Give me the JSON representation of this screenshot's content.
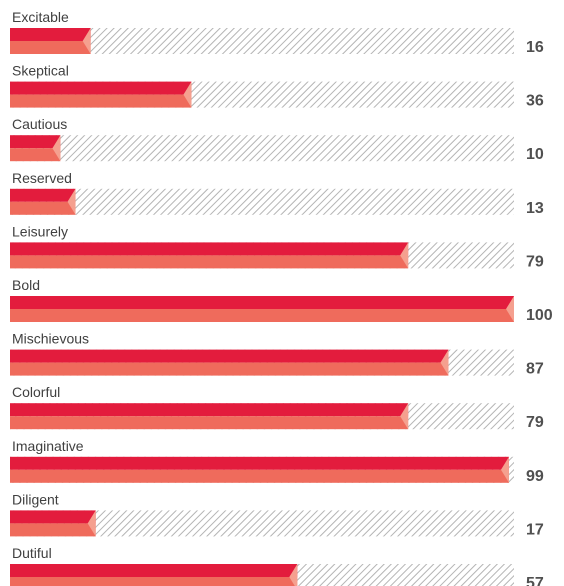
{
  "chart_data": {
    "type": "bar",
    "orientation": "horizontal",
    "categories": [
      "Excitable",
      "Skeptical",
      "Cautious",
      "Reserved",
      "Leisurely",
      "Bold",
      "Mischievous",
      "Colorful",
      "Imaginative",
      "Diligent",
      "Dutiful"
    ],
    "values": [
      16,
      36,
      10,
      13,
      79,
      100,
      87,
      79,
      99,
      17,
      57
    ],
    "value_labels": [
      "16",
      "36",
      "10",
      "13",
      "79",
      "100",
      "87",
      "79",
      "99",
      "17",
      "57"
    ],
    "xlim": [
      0,
      100
    ],
    "grid": false,
    "legend": "none",
    "colors": {
      "bar_top": "#e31c3d",
      "bar_bottom": "#ef6b5c",
      "bar_tip": "#f5a08f",
      "track_hatch": "#b4b4b4",
      "label": "#404040",
      "value": "#505050"
    }
  }
}
